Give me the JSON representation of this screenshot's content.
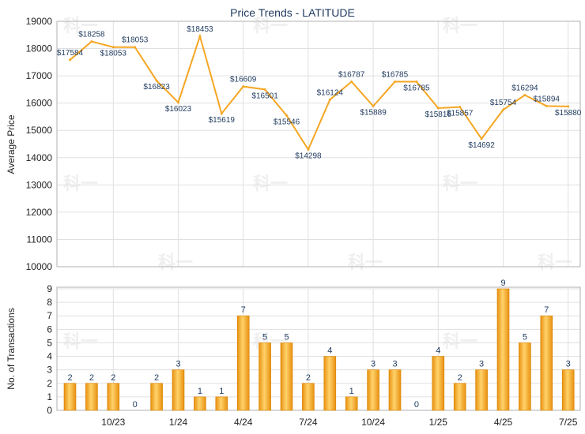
{
  "chart_data": [
    {
      "type": "line",
      "title": "Price Trends - LATITUDE",
      "ylabel": "Average Price",
      "ylim": [
        10000,
        19000
      ],
      "yticks": [
        10000,
        11000,
        12000,
        13000,
        14000,
        15000,
        16000,
        17000,
        18000,
        19000
      ],
      "x": [
        "8/23",
        "9/23",
        "10/23",
        "11/23",
        "12/23",
        "1/24",
        "2/24",
        "3/24",
        "4/24",
        "5/24",
        "6/24",
        "7/24",
        "8/24",
        "9/24",
        "10/24",
        "11/24",
        "12/24",
        "1/25",
        "2/25",
        "3/25",
        "4/25",
        "5/25",
        "6/25",
        "7/25"
      ],
      "values": [
        17584,
        18258,
        18053,
        18053,
        16823,
        16023,
        18453,
        15619,
        16609,
        16501,
        15546,
        14298,
        16124,
        16787,
        15889,
        16785,
        16785,
        15816,
        15857,
        14692,
        15754,
        16294,
        15894,
        15880
      ],
      "labels": [
        "$17584",
        "$18258",
        "$18053",
        "$18053",
        "$16823",
        "$16023",
        "$18453",
        "$15619",
        "$16609",
        "$16501",
        "$15546",
        "$14298",
        "$16124",
        "$16787",
        "$15889",
        "$16785",
        "$16785",
        "$15816",
        "$15857",
        "$14692",
        "$15754",
        "$16294",
        "$15894",
        "$15880"
      ],
      "grid": true,
      "line_color": "#f5a623"
    },
    {
      "type": "bar",
      "ylabel": "No. of Transactions",
      "ylim": [
        0,
        9
      ],
      "yticks": [
        0,
        1,
        2,
        3,
        4,
        5,
        6,
        7,
        8,
        9
      ],
      "categories": [
        "8/23",
        "9/23",
        "10/23",
        "11/23",
        "12/23",
        "1/24",
        "2/24",
        "3/24",
        "4/24",
        "5/24",
        "6/24",
        "7/24",
        "8/24",
        "9/24",
        "10/24",
        "11/24",
        "12/24",
        "1/25",
        "2/25",
        "3/25",
        "4/25",
        "5/25",
        "6/25",
        "7/25"
      ],
      "values": [
        2,
        2,
        2,
        0,
        2,
        3,
        1,
        1,
        7,
        5,
        5,
        2,
        4,
        1,
        3,
        3,
        0,
        4,
        2,
        3,
        9,
        5,
        7,
        3
      ],
      "grid": true,
      "bar_color": "#f5a623"
    }
  ],
  "xticks": [
    "10/23",
    "1/24",
    "4/24",
    "7/24",
    "10/24",
    "1/25",
    "4/25",
    "7/25"
  ]
}
